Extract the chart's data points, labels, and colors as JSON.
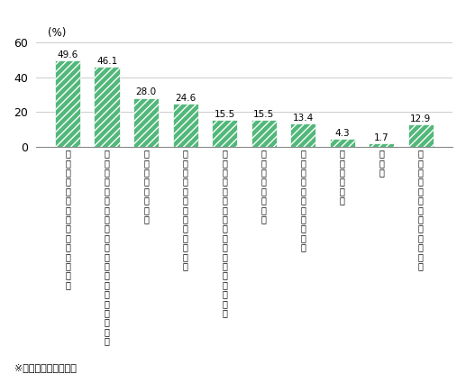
{
  "categories": [
    "会社のルールが整備されていない",
    "テレワークの環境が社会的に整備されていない",
    "上司が理解しない",
    "セキュリティ上の問題がある",
    "他の従業員から孤立している感じがする",
    "同僚が理解しない",
    "テレワークの費用が高い",
    "家族が嫌がる",
    "その他",
    "課題と感じるものは特にない"
  ],
  "values": [
    49.6,
    46.1,
    28.0,
    24.6,
    15.5,
    15.5,
    13.4,
    4.3,
    1.7,
    12.9
  ],
  "bar_color": "#52b87a",
  "hatch": "////",
  "hatch_color": "#ffffff",
  "ylim": [
    0,
    60
  ],
  "yticks": [
    0,
    20,
    40,
    60
  ],
  "percent_label": "(%)",
  "footnote": "※自営業を除いた回答",
  "background_color": "#ffffff",
  "grid_color": "#cccccc",
  "value_fontsize": 7.5,
  "tick_fontsize": 7,
  "footnote_fontsize": 8
}
